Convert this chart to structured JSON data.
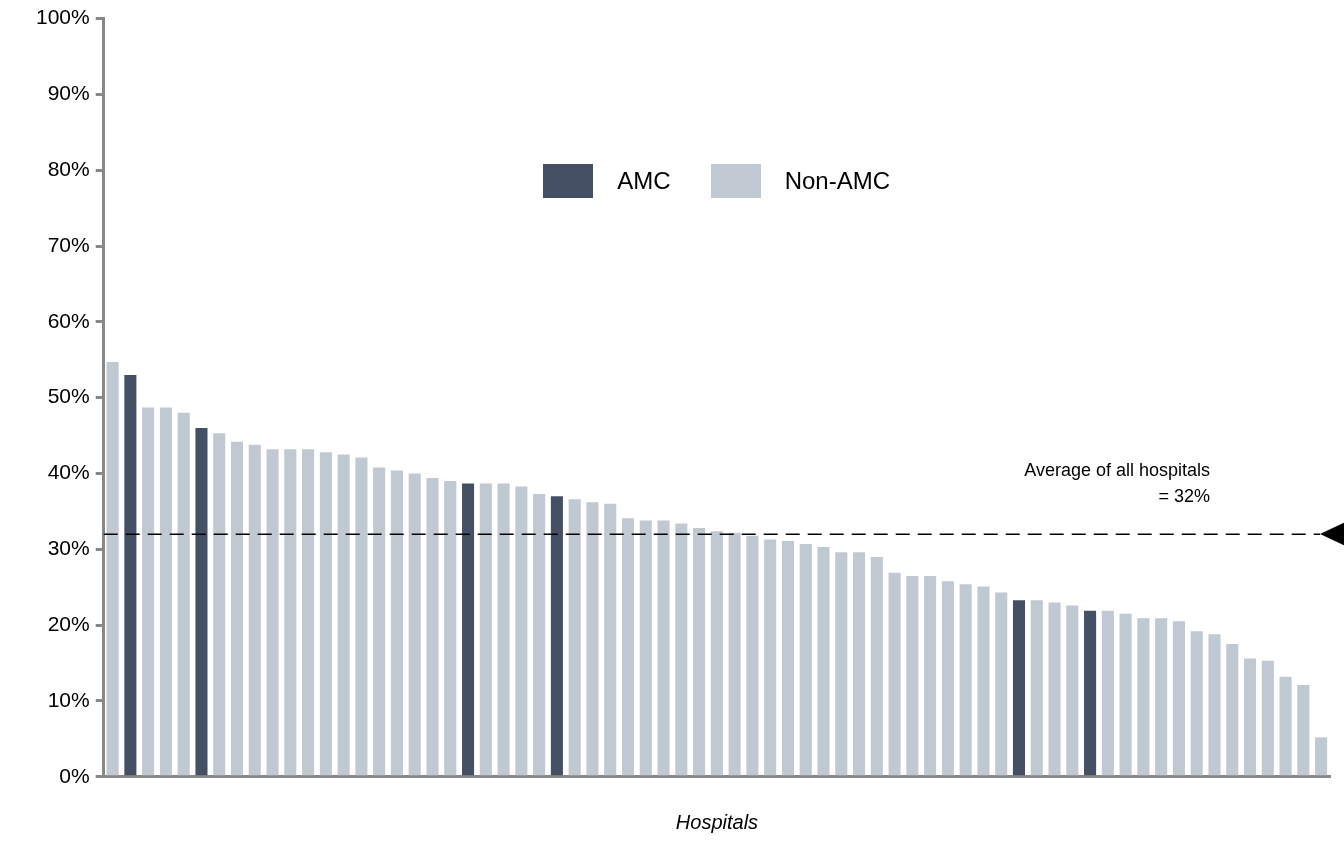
{
  "chart_data": {
    "type": "bar",
    "xlabel": "Hospitals",
    "categories": [
      null,
      null,
      null,
      null,
      null,
      null,
      null,
      null,
      null,
      null,
      null,
      null,
      null,
      null,
      null,
      null,
      null,
      null,
      null,
      null,
      null,
      null,
      null,
      null,
      null,
      null,
      null,
      null,
      null,
      null,
      null,
      null,
      null,
      null,
      null,
      null,
      null,
      null,
      null,
      null,
      null,
      null,
      null,
      null,
      null,
      null,
      null,
      null,
      null,
      null,
      null,
      null,
      null,
      null,
      null,
      null,
      null,
      null,
      null,
      null,
      null,
      null,
      null,
      null,
      null,
      null,
      null,
      null,
      null
    ],
    "series": [
      {
        "name": "AMC",
        "color": "#465064",
        "values": [
          null,
          53,
          null,
          null,
          null,
          46,
          null,
          null,
          null,
          null,
          null,
          null,
          null,
          null,
          null,
          null,
          null,
          null,
          null,
          null,
          38.7,
          null,
          null,
          null,
          null,
          37,
          null,
          null,
          null,
          null,
          null,
          null,
          null,
          null,
          null,
          null,
          null,
          null,
          null,
          null,
          null,
          null,
          null,
          null,
          null,
          null,
          null,
          null,
          null,
          null,
          null,
          23.3,
          null,
          null,
          null,
          21.9,
          null,
          null,
          null,
          null,
          null,
          null,
          null,
          null,
          null,
          null,
          null,
          null,
          null
        ]
      },
      {
        "name": "Non-AMC",
        "color": "#c0c8d2",
        "values": [
          54.7,
          null,
          48.7,
          48.7,
          48,
          null,
          45.3,
          44.2,
          43.8,
          43.2,
          43.2,
          43.2,
          42.8,
          42.5,
          42.1,
          40.8,
          40.4,
          40,
          39.4,
          39,
          null,
          38.7,
          38.7,
          38.3,
          37.3,
          null,
          36.6,
          36.2,
          36,
          34.1,
          33.8,
          33.8,
          33.4,
          32.8,
          32.4,
          32.2,
          31.8,
          31.3,
          31.1,
          30.7,
          30.3,
          29.6,
          29.6,
          29,
          26.9,
          26.5,
          26.5,
          25.8,
          25.4,
          25.1,
          24.3,
          null,
          23.3,
          23,
          22.6,
          null,
          21.9,
          21.5,
          20.9,
          20.9,
          20.5,
          19.2,
          18.8,
          17.5,
          15.6,
          15.3,
          13.2,
          12.1,
          5.2
        ]
      }
    ],
    "ylim": [
      0,
      100
    ],
    "yticks": [
      {
        "value": 0,
        "label": "0%"
      },
      {
        "value": 10,
        "label": "10%"
      },
      {
        "value": 20,
        "label": "20%"
      },
      {
        "value": 30,
        "label": "30%"
      },
      {
        "value": 40,
        "label": "40%"
      },
      {
        "value": 50,
        "label": "50%"
      },
      {
        "value": 60,
        "label": "60%"
      },
      {
        "value": 70,
        "label": "70%"
      },
      {
        "value": 80,
        "label": "80%"
      },
      {
        "value": 90,
        "label": "90%"
      },
      {
        "value": 100,
        "label": "100%"
      }
    ],
    "ref_lines": [
      {
        "axis": "y",
        "value": 32,
        "label": "Average of all hospitals\n= 32%",
        "color": "#000000",
        "line_style": "dashed"
      }
    ],
    "grid": false,
    "legend": "top"
  }
}
